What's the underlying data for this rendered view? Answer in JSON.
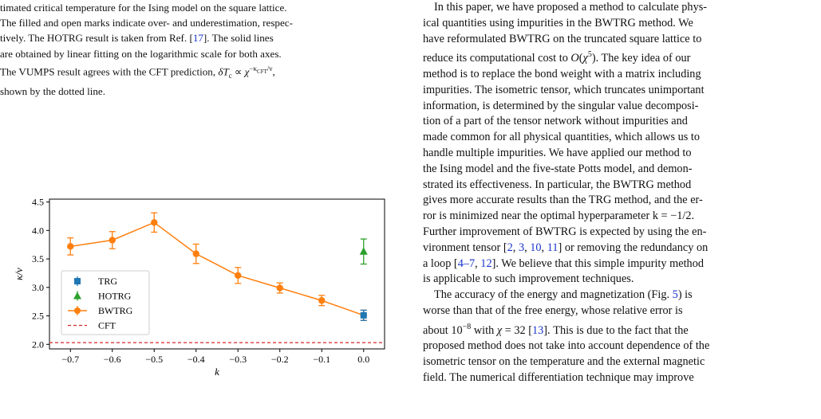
{
  "caption": {
    "lines": [
      "timated critical temperature for the Ising model on the square lattice.",
      "The filled and open marks indicate over- and underestimation, respec-",
      "tively. The HOTRG result is taken from Ref. [17]. The solid lines",
      "are obtained by linear fitting on the logarithmic scale for both axes.",
      "The VUMPS result agrees with the CFT prediction, δT_c ∝ χ^{−κ_CFT/ν},",
      "shown by the dotted line."
    ],
    "ref_17": "17"
  },
  "chart_data": {
    "type": "line",
    "xlabel": "k",
    "ylabel": "κ/ν",
    "xlim": [
      -0.75,
      0.05
    ],
    "ylim": [
      1.92,
      4.55
    ],
    "xticks": [
      "−0.7",
      "−0.6",
      "−0.5",
      "−0.4",
      "−0.3",
      "−0.2",
      "−0.1",
      "0.0"
    ],
    "yticks": [
      "2.0",
      "2.5",
      "3.0",
      "3.5",
      "4.0",
      "4.5"
    ],
    "legend_position": "center-left",
    "series": [
      {
        "name": "TRG",
        "marker": "square",
        "color": "#1f77b4",
        "x": [
          0.0
        ],
        "y": [
          2.51
        ],
        "err": [
          0.09
        ]
      },
      {
        "name": "HOTRG",
        "marker": "triangle",
        "color": "#2ca02c",
        "x": [
          0.0
        ],
        "y": [
          3.63
        ],
        "err": [
          0.22
        ]
      },
      {
        "name": "BWTRG",
        "marker": "circle",
        "color": "#ff7f0e",
        "x": [
          -0.7,
          -0.6,
          -0.5,
          -0.4,
          -0.3,
          -0.2,
          -0.1,
          0.0
        ],
        "y": [
          3.72,
          3.83,
          4.14,
          3.59,
          3.21,
          2.99,
          2.77,
          2.51
        ],
        "err": [
          0.15,
          0.15,
          0.17,
          0.17,
          0.14,
          0.09,
          0.09,
          0.09
        ]
      },
      {
        "name": "CFT",
        "style": "dashed",
        "color": "#d62728",
        "y": 2.03
      }
    ]
  },
  "right_column": {
    "lines": [
      "In this paper, we have proposed a method to calculate phys-",
      "ical quantities using impurities in the BWTRG method. We",
      "have reformulated BWTRG on the truncated square lattice to",
      "reduce its computational cost to O(χ⁵). The key idea of our",
      "method is to replace the bond weight with a matrix including",
      "impurities. The isometric tensor, which truncates unimportant",
      "information, is determined by the singular value decomposi-",
      "tion of a part of the tensor network without impurities and",
      "made common for all physical quantities, which allows us to",
      "handle multiple impurities. We have applied our method to",
      "the Ising model and the five-state Potts model, and demon-",
      "strated its effectiveness. In particular, the BWTRG method",
      "gives more accurate results than the TRG method, and the er-",
      "ror is minimized near the optimal hyperparameter k = −1/2.",
      "Further improvement of BWTRG is expected by using the en-",
      "vironment tensor [2, 3, 10, 11] or removing the redundancy on",
      "a loop [4–7, 12]. We believe that this simple impurity method",
      "is applicable to such improvement techniques.",
      "The accuracy of the energy and magnetization (Fig. 5) is",
      "worse than that of the free energy, whose relative error is",
      "about 10⁻⁸ with χ = 32 [13]. This is due to the fact that the",
      "proposed method does not take into account dependence of the",
      "isometric tensor on the temperature and the external magnetic",
      "field. The numerical differentiation technique may improve"
    ]
  }
}
